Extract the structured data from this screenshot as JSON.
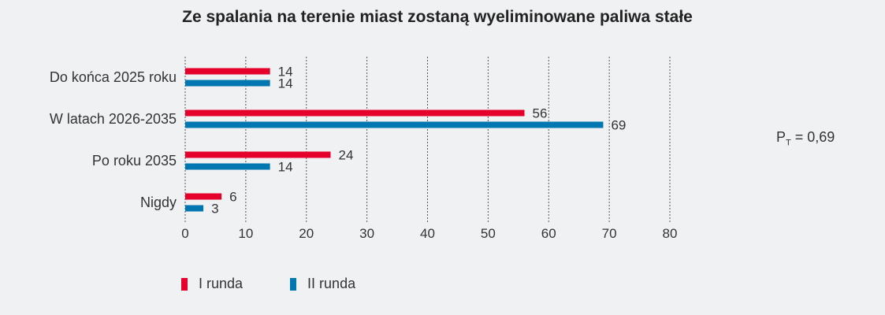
{
  "chart_data": {
    "type": "bar",
    "orientation": "horizontal",
    "title": "Ze spalania na terenie miast zostaną wyeliminowane paliwa stałe",
    "categories": [
      "Do końca 2025 roku",
      "W latach 2026-2035",
      "Po roku 2035",
      "Nigdy"
    ],
    "series": [
      {
        "name": "I runda",
        "color": "#e4002b",
        "values": [
          14,
          56,
          24,
          6
        ]
      },
      {
        "name": "II runda",
        "color": "#0077b0",
        "values": [
          14,
          69,
          14,
          3
        ]
      }
    ],
    "xlim": [
      0,
      80
    ],
    "xticks": [
      0,
      10,
      20,
      30,
      40,
      50,
      60,
      70,
      80
    ],
    "grid": true,
    "grid_style": "dashed-vertical",
    "legend_position": "bottom-left",
    "annotation": {
      "main": "P",
      "sub": "T",
      "rest": " = 0,69"
    }
  }
}
